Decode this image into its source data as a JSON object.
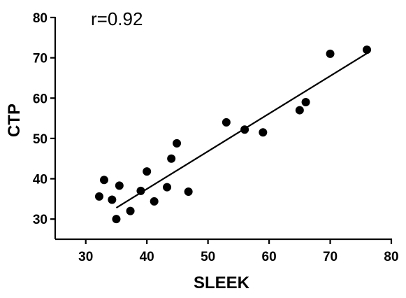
{
  "chart_data": {
    "type": "scatter",
    "title": "",
    "xlabel": "SLEEK",
    "ylabel": "CTP",
    "xlim": [
      25,
      80
    ],
    "ylim": [
      25,
      80
    ],
    "xticks": [
      30,
      40,
      50,
      60,
      70,
      80
    ],
    "yticks": [
      30,
      40,
      50,
      60,
      70,
      80
    ],
    "grid": false,
    "annotation": "r=0.92",
    "colors": {
      "points": "#000000",
      "line": "#000000",
      "axes": "#000000"
    },
    "series": [
      {
        "points": [
          {
            "x": 32.2,
            "y": 35.6
          },
          {
            "x": 33.0,
            "y": 39.7
          },
          {
            "x": 34.3,
            "y": 34.8
          },
          {
            "x": 35.0,
            "y": 30.0
          },
          {
            "x": 35.5,
            "y": 38.3
          },
          {
            "x": 37.3,
            "y": 32.0
          },
          {
            "x": 39.0,
            "y": 37.0
          },
          {
            "x": 40.0,
            "y": 41.8
          },
          {
            "x": 41.2,
            "y": 34.4
          },
          {
            "x": 43.3,
            "y": 37.9
          },
          {
            "x": 44.0,
            "y": 45.0
          },
          {
            "x": 44.9,
            "y": 48.8
          },
          {
            "x": 46.8,
            "y": 36.8
          },
          {
            "x": 53.0,
            "y": 54.0
          },
          {
            "x": 56.0,
            "y": 52.2
          },
          {
            "x": 59.0,
            "y": 51.5
          },
          {
            "x": 65.0,
            "y": 57.0
          },
          {
            "x": 66.0,
            "y": 59.0
          },
          {
            "x": 70.0,
            "y": 71.0
          },
          {
            "x": 76.0,
            "y": 72.0
          }
        ]
      }
    ],
    "fit_line": {
      "x": [
        35.0,
        76.0
      ],
      "y": [
        32.8,
        71.1
      ]
    }
  }
}
